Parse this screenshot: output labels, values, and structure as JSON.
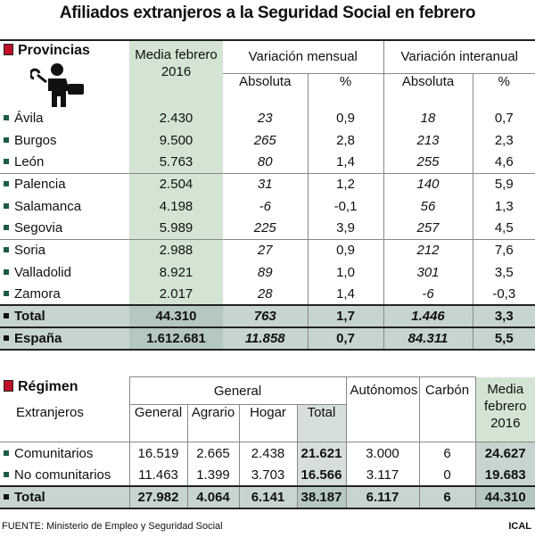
{
  "title": "Afiliados extranjeros a la Seguridad Social en febrero",
  "provincias": {
    "title": "Provincias",
    "headers": {
      "media": "Media febrero 2016",
      "mensual": "Variación mensual",
      "interanual": "Variación interanual",
      "absoluta_1": "Absoluta",
      "pct_1": "%",
      "absoluta_2": "Absoluta",
      "pct_2": "%"
    },
    "rows": [
      [
        "Ávila",
        "2.430",
        "23",
        "0,9",
        "18",
        "0,7"
      ],
      [
        "Burgos",
        "9.500",
        "265",
        "2,8",
        "213",
        "2,3"
      ],
      [
        "León",
        "5.763",
        "80",
        "1,4",
        "255",
        "4,6"
      ],
      [
        "Palencia",
        "2.504",
        "31",
        "1,2",
        "140",
        "5,9"
      ],
      [
        "Salamanca",
        "4.198",
        "-6",
        "-0,1",
        "56",
        "1,3"
      ],
      [
        "Segovia",
        "5.989",
        "225",
        "3,9",
        "257",
        "4,5"
      ],
      [
        "Soria",
        "2.988",
        "27",
        "0,9",
        "212",
        "7,6"
      ],
      [
        "Valladolid",
        "8.921",
        "89",
        "1,0",
        "301",
        "3,5"
      ],
      [
        "Zamora",
        "2.017",
        "28",
        "1,4",
        "-6",
        "-0,3"
      ],
      [
        "Total",
        "44.310",
        "763",
        "1,7",
        "1.446",
        "3,3"
      ],
      [
        "España",
        "1.612.681",
        "11.858",
        "0,7",
        "84.311",
        "5,5"
      ]
    ]
  },
  "regimen": {
    "title": "Régimen",
    "headers": {
      "extranjeros": "Extranjeros",
      "general_group": "General",
      "general": "General",
      "agrario": "Agrario",
      "hogar": "Hogar",
      "total": "Total",
      "autonomos": "Autónomos",
      "carbon": "Carbón",
      "media": "Media febrero 2016"
    },
    "rows": [
      [
        "Comunitarios",
        "16.519",
        "2.665",
        "2.438",
        "21.621",
        "3.000",
        "6",
        "24.627"
      ],
      [
        "No comunitarios",
        "11.463",
        "1.399",
        "3.703",
        "16.566",
        "3.117",
        "0",
        "19.683"
      ],
      [
        "Total",
        "27.982",
        "4.064",
        "6.141",
        "38.187",
        "6.117",
        "6",
        "44.310"
      ]
    ]
  },
  "footer": {
    "source": "FUENTE: Ministerio de Empleo y Seguridad Social",
    "credit": "ICAL"
  }
}
